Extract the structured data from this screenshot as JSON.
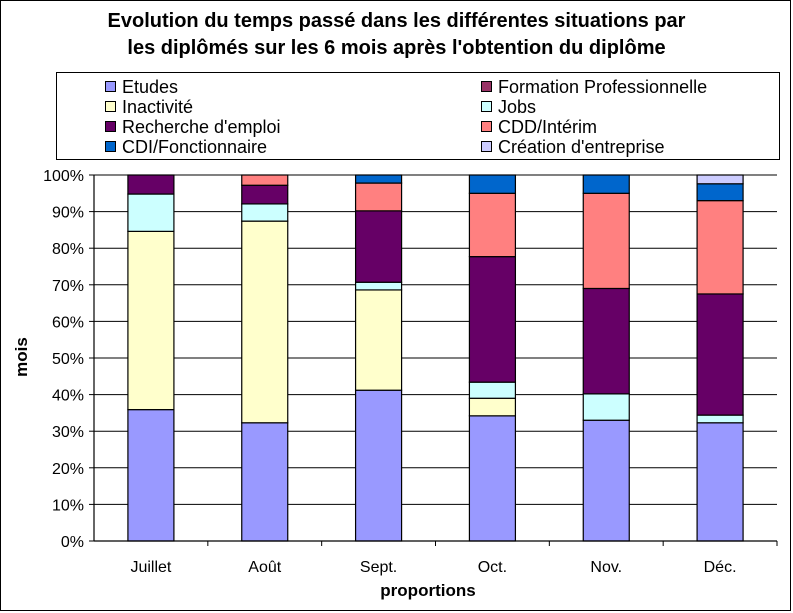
{
  "chart_data": {
    "type": "bar",
    "stacked": true,
    "title": "Evolution du temps passé dans les différentes situations par les diplômés sur les 6 mois après l'obtention du diplôme",
    "title_lines": [
      "Evolution du temps passé dans les différentes situations par",
      "les diplômés sur les 6 mois après l'obtention du diplôme"
    ],
    "xlabel": "proportions",
    "ylabel": "mois",
    "ylim": [
      0,
      100
    ],
    "yticks": [
      "0%",
      "10%",
      "20%",
      "30%",
      "40%",
      "50%",
      "60%",
      "70%",
      "80%",
      "90%",
      "100%"
    ],
    "grid": true,
    "legend_position": "top",
    "categories": [
      "Juillet",
      "Août",
      "Sept.",
      "Oct.",
      "Nov.",
      "Déc."
    ],
    "series": [
      {
        "name": "Etudes",
        "color": "#9999ff",
        "values": [
          35.9,
          32.3,
          41.2,
          34.2,
          33.0,
          32.3
        ]
      },
      {
        "name": "Inactivité",
        "color": "#ffffcc",
        "values": [
          48.7,
          55.1,
          27.4,
          4.8,
          0,
          0
        ]
      },
      {
        "name": "Jobs",
        "color": "#ccffff",
        "values": [
          10.2,
          4.7,
          2.1,
          4.4,
          7.2,
          2.1
        ]
      },
      {
        "name": "Recherche d'emploi",
        "color": "#660066",
        "values": [
          5.2,
          5.1,
          19.5,
          34.3,
          28.8,
          33.1
        ]
      },
      {
        "name": "CDD/Intérim",
        "color": "#ff8080",
        "values": [
          0,
          2.8,
          7.6,
          17.3,
          26.0,
          25.5
        ]
      },
      {
        "name": "CDI/Fonctionnaire",
        "color": "#0066cc",
        "values": [
          0,
          0,
          2.2,
          5.0,
          5.0,
          4.6
        ]
      },
      {
        "name": "Création d'entreprise",
        "color": "#ccccff",
        "values": [
          0,
          0,
          0,
          0,
          0,
          2.4
        ]
      },
      {
        "name": "Formation Professionnelle",
        "color": "#993366",
        "values": [
          0,
          0,
          0,
          0,
          0,
          0
        ]
      }
    ]
  },
  "legend": {
    "items": [
      {
        "name": "Etudes",
        "color": "#9999ff"
      },
      {
        "name": "Formation Professionnelle",
        "color": "#993366"
      },
      {
        "name": "Inactivité",
        "color": "#ffffcc"
      },
      {
        "name": "Jobs",
        "color": "#ccffff"
      },
      {
        "name": "Recherche d'emploi",
        "color": "#660066"
      },
      {
        "name": "CDD/Intérim",
        "color": "#ff8080"
      },
      {
        "name": "CDI/Fonctionnaire",
        "color": "#0066cc"
      },
      {
        "name": "Création d'entreprise",
        "color": "#ccccff"
      }
    ]
  }
}
